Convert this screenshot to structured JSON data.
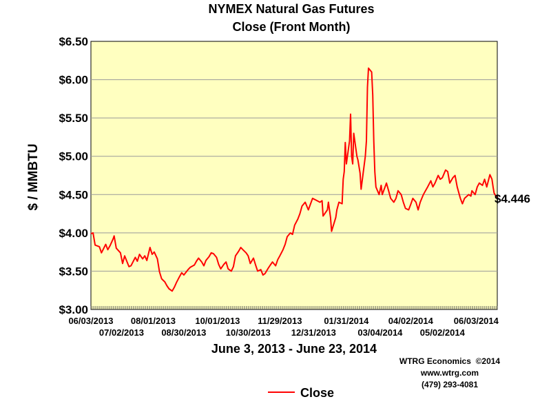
{
  "chart_data": {
    "type": "line",
    "title": "NYMEX Natural Gas Futures",
    "subtitle": "Close (Front Month)",
    "xlabel": "June 3, 2013 - June 23, 2014",
    "ylabel": "$ / MMBTU",
    "ylim": [
      3.0,
      6.5
    ],
    "y_ticks": [
      "$3.00",
      "$3.50",
      "$4.00",
      "$4.50",
      "$5.00",
      "$5.50",
      "$6.00",
      "$6.50"
    ],
    "y_tick_values": [
      3.0,
      3.5,
      4.0,
      4.5,
      5.0,
      5.5,
      6.0,
      6.5
    ],
    "x_range": [
      "2013-06-03",
      "2014-06-23"
    ],
    "x_ticks_upper": [
      {
        "label": "06/03/2013",
        "date": "2013-06-03"
      },
      {
        "label": "08/01/2013",
        "date": "2013-08-01"
      },
      {
        "label": "10/01/2013",
        "date": "2013-10-01"
      },
      {
        "label": "11/29/2013",
        "date": "2013-11-29"
      },
      {
        "label": "01/31/2014",
        "date": "2014-01-31"
      },
      {
        "label": "04/02/2014",
        "date": "2014-04-02"
      },
      {
        "label": "06/03/2014",
        "date": "2014-06-03"
      }
    ],
    "x_ticks_lower": [
      {
        "label": "07/02/2013",
        "date": "2013-07-02"
      },
      {
        "label": "08/30/2013",
        "date": "2013-08-30"
      },
      {
        "label": "10/30/2013",
        "date": "2013-10-30"
      },
      {
        "label": "12/31/2013",
        "date": "2013-12-31"
      },
      {
        "label": "03/04/2014",
        "date": "2014-03-04"
      },
      {
        "label": "05/02/2014",
        "date": "2014-05-02"
      }
    ],
    "grid": true,
    "legend_position": "bottom-center",
    "end_label": "$4.446",
    "credits": [
      "WTRG Economics  ©2014",
      "www.wtrg.com",
      "(479) 293-4081"
    ],
    "colors": {
      "plot_background": "#ffffc0",
      "line": "#ff0000",
      "grid": "#999999"
    },
    "series": [
      {
        "name": "Close",
        "points": [
          {
            "x": "2013-06-03",
            "y": 3.99
          },
          {
            "x": "2013-06-05",
            "y": 4.0
          },
          {
            "x": "2013-06-07",
            "y": 3.84
          },
          {
            "x": "2013-06-11",
            "y": 3.82
          },
          {
            "x": "2013-06-13",
            "y": 3.74
          },
          {
            "x": "2013-06-17",
            "y": 3.85
          },
          {
            "x": "2013-06-19",
            "y": 3.78
          },
          {
            "x": "2013-06-21",
            "y": 3.83
          },
          {
            "x": "2013-06-24",
            "y": 3.92
          },
          {
            "x": "2013-06-25",
            "y": 3.96
          },
          {
            "x": "2013-06-27",
            "y": 3.8
          },
          {
            "x": "2013-07-01",
            "y": 3.74
          },
          {
            "x": "2013-07-03",
            "y": 3.6
          },
          {
            "x": "2013-07-05",
            "y": 3.7
          },
          {
            "x": "2013-07-09",
            "y": 3.56
          },
          {
            "x": "2013-07-11",
            "y": 3.57
          },
          {
            "x": "2013-07-15",
            "y": 3.68
          },
          {
            "x": "2013-07-17",
            "y": 3.63
          },
          {
            "x": "2013-07-19",
            "y": 3.72
          },
          {
            "x": "2013-07-22",
            "y": 3.66
          },
          {
            "x": "2013-07-24",
            "y": 3.7
          },
          {
            "x": "2013-07-26",
            "y": 3.64
          },
          {
            "x": "2013-07-29",
            "y": 3.81
          },
          {
            "x": "2013-07-31",
            "y": 3.72
          },
          {
            "x": "2013-08-02",
            "y": 3.75
          },
          {
            "x": "2013-08-05",
            "y": 3.66
          },
          {
            "x": "2013-08-07",
            "y": 3.49
          },
          {
            "x": "2013-08-09",
            "y": 3.4
          },
          {
            "x": "2013-08-12",
            "y": 3.36
          },
          {
            "x": "2013-08-14",
            "y": 3.31
          },
          {
            "x": "2013-08-16",
            "y": 3.27
          },
          {
            "x": "2013-08-19",
            "y": 3.24
          },
          {
            "x": "2013-08-21",
            "y": 3.29
          },
          {
            "x": "2013-08-23",
            "y": 3.35
          },
          {
            "x": "2013-08-26",
            "y": 3.43
          },
          {
            "x": "2013-08-28",
            "y": 3.48
          },
          {
            "x": "2013-08-30",
            "y": 3.45
          },
          {
            "x": "2013-09-03",
            "y": 3.52
          },
          {
            "x": "2013-09-05",
            "y": 3.55
          },
          {
            "x": "2013-09-09",
            "y": 3.58
          },
          {
            "x": "2013-09-11",
            "y": 3.63
          },
          {
            "x": "2013-09-13",
            "y": 3.67
          },
          {
            "x": "2013-09-16",
            "y": 3.62
          },
          {
            "x": "2013-09-18",
            "y": 3.57
          },
          {
            "x": "2013-09-20",
            "y": 3.64
          },
          {
            "x": "2013-09-23",
            "y": 3.69
          },
          {
            "x": "2013-09-25",
            "y": 3.74
          },
          {
            "x": "2013-09-27",
            "y": 3.73
          },
          {
            "x": "2013-09-30",
            "y": 3.68
          },
          {
            "x": "2013-10-02",
            "y": 3.59
          },
          {
            "x": "2013-10-04",
            "y": 3.53
          },
          {
            "x": "2013-10-07",
            "y": 3.59
          },
          {
            "x": "2013-10-09",
            "y": 3.62
          },
          {
            "x": "2013-10-11",
            "y": 3.53
          },
          {
            "x": "2013-10-14",
            "y": 3.5
          },
          {
            "x": "2013-10-16",
            "y": 3.56
          },
          {
            "x": "2013-10-18",
            "y": 3.7
          },
          {
            "x": "2013-10-21",
            "y": 3.76
          },
          {
            "x": "2013-10-23",
            "y": 3.81
          },
          {
            "x": "2013-10-25",
            "y": 3.78
          },
          {
            "x": "2013-10-28",
            "y": 3.74
          },
          {
            "x": "2013-10-30",
            "y": 3.7
          },
          {
            "x": "2013-11-01",
            "y": 3.6
          },
          {
            "x": "2013-11-04",
            "y": 3.67
          },
          {
            "x": "2013-11-06",
            "y": 3.58
          },
          {
            "x": "2013-11-08",
            "y": 3.5
          },
          {
            "x": "2013-11-11",
            "y": 3.52
          },
          {
            "x": "2013-11-13",
            "y": 3.45
          },
          {
            "x": "2013-11-15",
            "y": 3.47
          },
          {
            "x": "2013-11-18",
            "y": 3.54
          },
          {
            "x": "2013-11-20",
            "y": 3.58
          },
          {
            "x": "2013-11-22",
            "y": 3.62
          },
          {
            "x": "2013-11-25",
            "y": 3.57
          },
          {
            "x": "2013-11-27",
            "y": 3.65
          },
          {
            "x": "2013-11-29",
            "y": 3.7
          },
          {
            "x": "2013-12-02",
            "y": 3.78
          },
          {
            "x": "2013-12-04",
            "y": 3.85
          },
          {
            "x": "2013-12-06",
            "y": 3.95
          },
          {
            "x": "2013-12-09",
            "y": 4.0
          },
          {
            "x": "2013-12-11",
            "y": 3.98
          },
          {
            "x": "2013-12-13",
            "y": 4.1
          },
          {
            "x": "2013-12-16",
            "y": 4.18
          },
          {
            "x": "2013-12-18",
            "y": 4.25
          },
          {
            "x": "2013-12-20",
            "y": 4.35
          },
          {
            "x": "2013-12-23",
            "y": 4.4
          },
          {
            "x": "2013-12-26",
            "y": 4.3
          },
          {
            "x": "2013-12-30",
            "y": 4.45
          },
          {
            "x": "2014-01-02",
            "y": 4.43
          },
          {
            "x": "2014-01-06",
            "y": 4.4
          },
          {
            "x": "2014-01-08",
            "y": 4.42
          },
          {
            "x": "2014-01-09",
            "y": 4.22
          },
          {
            "x": "2014-01-13",
            "y": 4.3
          },
          {
            "x": "2014-01-14",
            "y": 4.4
          },
          {
            "x": "2014-01-16",
            "y": 4.2
          },
          {
            "x": "2014-01-17",
            "y": 4.02
          },
          {
            "x": "2014-01-21",
            "y": 4.2
          },
          {
            "x": "2014-01-22",
            "y": 4.3
          },
          {
            "x": "2014-01-24",
            "y": 4.4
          },
          {
            "x": "2014-01-27",
            "y": 4.38
          },
          {
            "x": "2014-01-28",
            "y": 4.7
          },
          {
            "x": "2014-01-29",
            "y": 4.8
          },
          {
            "x": "2014-01-30",
            "y": 5.18
          },
          {
            "x": "2014-01-31",
            "y": 4.9
          },
          {
            "x": "2014-02-03",
            "y": 5.2
          },
          {
            "x": "2014-02-04",
            "y": 5.55
          },
          {
            "x": "2014-02-05",
            "y": 5.0
          },
          {
            "x": "2014-02-06",
            "y": 4.9
          },
          {
            "x": "2014-02-07",
            "y": 5.3
          },
          {
            "x": "2014-02-10",
            "y": 5.0
          },
          {
            "x": "2014-02-11",
            "y": 4.95
          },
          {
            "x": "2014-02-13",
            "y": 4.78
          },
          {
            "x": "2014-02-14",
            "y": 4.57
          },
          {
            "x": "2014-02-18",
            "y": 5.0
          },
          {
            "x": "2014-02-19",
            "y": 5.2
          },
          {
            "x": "2014-02-20",
            "y": 5.9
          },
          {
            "x": "2014-02-21",
            "y": 6.15
          },
          {
            "x": "2014-02-24",
            "y": 6.1
          },
          {
            "x": "2014-02-25",
            "y": 5.8
          },
          {
            "x": "2014-02-26",
            "y": 5.2
          },
          {
            "x": "2014-02-27",
            "y": 4.8
          },
          {
            "x": "2014-02-28",
            "y": 4.6
          },
          {
            "x": "2014-03-03",
            "y": 4.5
          },
          {
            "x": "2014-03-05",
            "y": 4.62
          },
          {
            "x": "2014-03-06",
            "y": 4.5
          },
          {
            "x": "2014-03-10",
            "y": 4.65
          },
          {
            "x": "2014-03-12",
            "y": 4.55
          },
          {
            "x": "2014-03-14",
            "y": 4.45
          },
          {
            "x": "2014-03-17",
            "y": 4.4
          },
          {
            "x": "2014-03-19",
            "y": 4.45
          },
          {
            "x": "2014-03-21",
            "y": 4.55
          },
          {
            "x": "2014-03-24",
            "y": 4.5
          },
          {
            "x": "2014-03-26",
            "y": 4.4
          },
          {
            "x": "2014-03-28",
            "y": 4.32
          },
          {
            "x": "2014-03-31",
            "y": 4.3
          },
          {
            "x": "2014-04-02",
            "y": 4.37
          },
          {
            "x": "2014-04-04",
            "y": 4.45
          },
          {
            "x": "2014-04-07",
            "y": 4.4
          },
          {
            "x": "2014-04-09",
            "y": 4.3
          },
          {
            "x": "2014-04-11",
            "y": 4.4
          },
          {
            "x": "2014-04-14",
            "y": 4.5
          },
          {
            "x": "2014-04-16",
            "y": 4.55
          },
          {
            "x": "2014-04-18",
            "y": 4.6
          },
          {
            "x": "2014-04-21",
            "y": 4.68
          },
          {
            "x": "2014-04-23",
            "y": 4.6
          },
          {
            "x": "2014-04-25",
            "y": 4.65
          },
          {
            "x": "2014-04-28",
            "y": 4.75
          },
          {
            "x": "2014-04-30",
            "y": 4.7
          },
          {
            "x": "2014-05-02",
            "y": 4.72
          },
          {
            "x": "2014-05-05",
            "y": 4.82
          },
          {
            "x": "2014-05-07",
            "y": 4.8
          },
          {
            "x": "2014-05-09",
            "y": 4.65
          },
          {
            "x": "2014-05-12",
            "y": 4.72
          },
          {
            "x": "2014-05-14",
            "y": 4.75
          },
          {
            "x": "2014-05-16",
            "y": 4.6
          },
          {
            "x": "2014-05-19",
            "y": 4.45
          },
          {
            "x": "2014-05-21",
            "y": 4.38
          },
          {
            "x": "2014-05-23",
            "y": 4.45
          },
          {
            "x": "2014-05-27",
            "y": 4.5
          },
          {
            "x": "2014-05-29",
            "y": 4.48
          },
          {
            "x": "2014-05-30",
            "y": 4.55
          },
          {
            "x": "2014-06-02",
            "y": 4.5
          },
          {
            "x": "2014-06-04",
            "y": 4.6
          },
          {
            "x": "2014-06-06",
            "y": 4.65
          },
          {
            "x": "2014-06-09",
            "y": 4.62
          },
          {
            "x": "2014-06-11",
            "y": 4.7
          },
          {
            "x": "2014-06-13",
            "y": 4.6
          },
          {
            "x": "2014-06-16",
            "y": 4.76
          },
          {
            "x": "2014-06-17",
            "y": 4.73
          },
          {
            "x": "2014-06-18",
            "y": 4.7
          },
          {
            "x": "2014-06-19",
            "y": 4.6
          },
          {
            "x": "2014-06-20",
            "y": 4.52
          },
          {
            "x": "2014-06-23",
            "y": 4.446
          }
        ]
      }
    ]
  }
}
